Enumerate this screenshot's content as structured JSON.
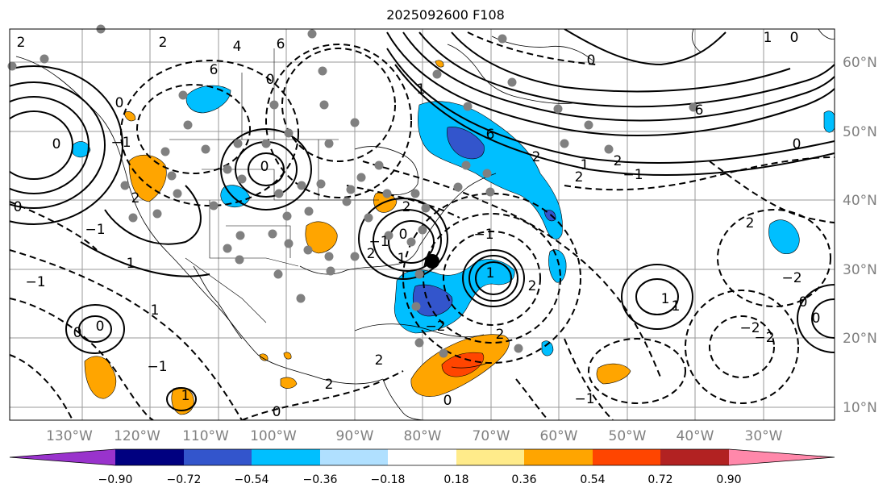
{
  "title": "2025092600 F108",
  "longitude_labels": [
    "130°W",
    "120°W",
    "110°W",
    "100°W",
    "90°W",
    "80°W",
    "70°W",
    "60°W",
    "50°W",
    "40°W",
    "30°W"
  ],
  "latitude_labels": [
    "60°N",
    "50°N",
    "40°N",
    "30°N",
    "20°N",
    "10°N"
  ],
  "colorbar": {
    "colors": [
      "#9933cc",
      "#000080",
      "#3355cc",
      "#00bfff",
      "#b0e0ff",
      "#ffffff",
      "#ffeb8a",
      "#ffa500",
      "#ff4500",
      "#b22222",
      "#ff88aa"
    ],
    "tick_labels": [
      "−0.90",
      "−0.72",
      "−0.54",
      "−0.36",
      "−0.18",
      "0.18",
      "0.36",
      "0.54",
      "0.72",
      "0.90"
    ]
  },
  "contour_labels": [
    "2",
    "2",
    "4",
    "6",
    "6",
    "0",
    "0",
    "0",
    "−1",
    "2",
    "−1",
    "1",
    "0",
    "0",
    "0",
    "1",
    "1",
    "−1",
    "2",
    "1",
    "6",
    "2",
    "6",
    "1",
    "0",
    "0",
    "2",
    "2",
    "1",
    "−1",
    "0",
    "2",
    "−2",
    "−2",
    "−2",
    "0",
    "0",
    "1",
    "1",
    "0",
    "0",
    "1",
    "−1",
    "1",
    "−1",
    "−2",
    "−1",
    "2",
    "2",
    "0",
    "2",
    "2",
    "0",
    "−1",
    "2"
  ],
  "marker_symbol": "center-dot"
}
